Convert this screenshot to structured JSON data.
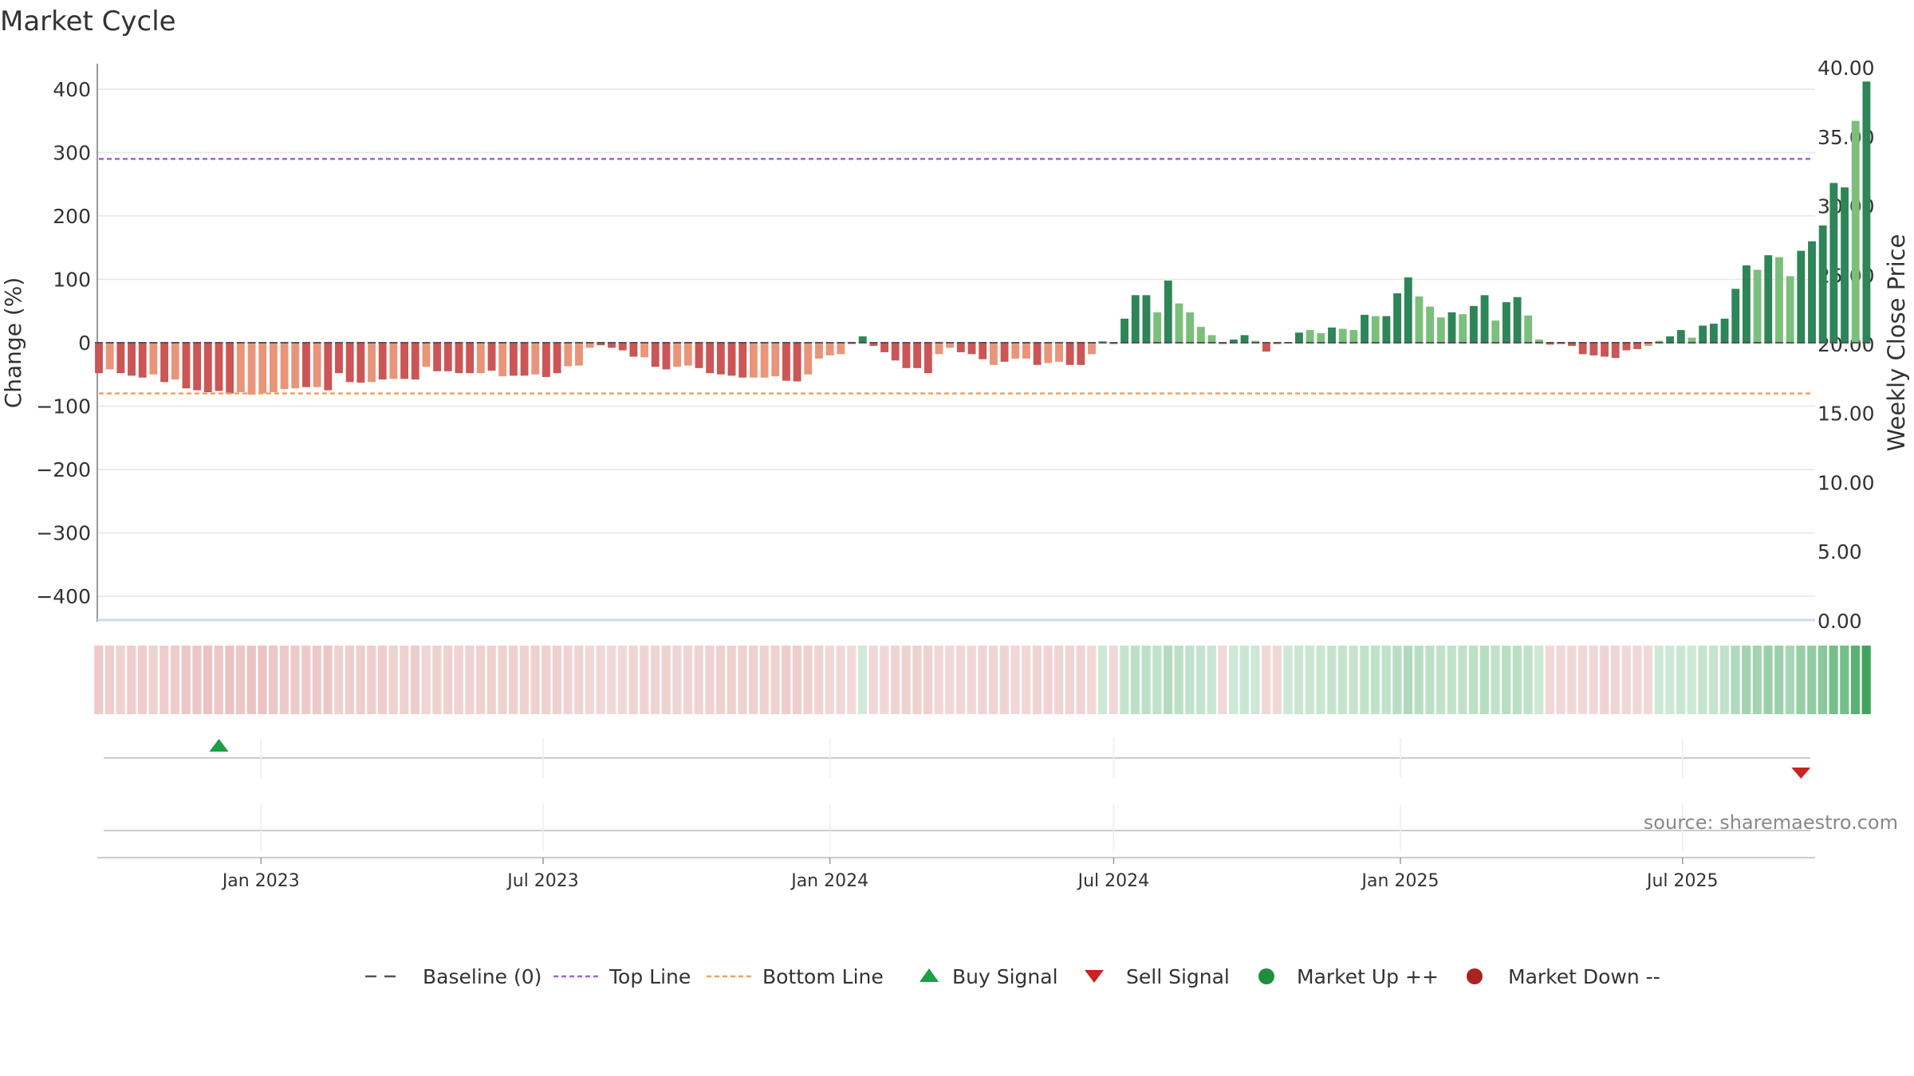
{
  "title": "Market Cycle",
  "source": "source: sharemaestro.com",
  "colors": {
    "bar_up_strong": "#2e8557",
    "bar_up_light": "#7cbf7c",
    "bar_down_strong": "#cc5555",
    "bar_down_light": "#e8957a",
    "top_line": "#9966cc",
    "bottom_line": "#f0a060",
    "price_line": "#c8dcf5",
    "buy": "#1e9e46",
    "sell": "#cc2222",
    "market_up": "#1e8e3e",
    "market_down": "#aa2222",
    "baseline": "#555555"
  },
  "legend": [
    {
      "label": "Baseline (0)",
      "icon": "baseline-dash-icon"
    },
    {
      "label": "Top Line",
      "icon": "top-line-icon"
    },
    {
      "label": "Bottom Line",
      "icon": "bottom-line-icon"
    },
    {
      "label": "Buy Signal",
      "icon": "buy-triangle-icon"
    },
    {
      "label": "Sell Signal",
      "icon": "sell-triangle-icon"
    },
    {
      "label": "Market Up ++",
      "icon": "market-up-dot-icon"
    },
    {
      "label": "Market Down --",
      "icon": "market-down-dot-icon"
    }
  ],
  "chart_data": {
    "type": "bar",
    "ylabel_left": "Change (%)",
    "ylabel_right": "Weekly Close Price",
    "ylim_left": [
      -440,
      440
    ],
    "yticks_left": [
      "400",
      "300",
      "200",
      "100",
      "0",
      "−100",
      "−200",
      "−300",
      "−400"
    ],
    "yticks_left_values": [
      400,
      300,
      200,
      100,
      0,
      -100,
      -200,
      -300,
      -400
    ],
    "ylim_right": [
      -0.07,
      40.3
    ],
    "yticks_right": [
      "40.00",
      "35.00",
      "30.00",
      "25.00",
      "20.00",
      "15.00",
      "10.00",
      "5.00",
      "0.00"
    ],
    "yticks_right_values": [
      40,
      35,
      30,
      25,
      20,
      15,
      10,
      5,
      0
    ],
    "top_line": 290,
    "bottom_line": -80,
    "price_near_zero": 0.05,
    "x_start": "2022-09-19",
    "x_end": "2025-09-22",
    "xticks": [
      {
        "label": "Jan 2023",
        "date": "2023-01-01"
      },
      {
        "label": "Jul 2023",
        "date": "2023-07-01"
      },
      {
        "label": "Jan 2024",
        "date": "2024-01-01"
      },
      {
        "label": "Jul 2024",
        "date": "2024-07-01"
      },
      {
        "label": "Jan 2025",
        "date": "2025-01-01"
      },
      {
        "label": "Jul 2025",
        "date": "2025-07-01"
      }
    ],
    "bar_start": "2022-09-19",
    "values": [
      -48,
      -42,
      -48,
      -52,
      -55,
      -50,
      -62,
      -58,
      -72,
      -75,
      -78,
      -76,
      -80,
      -78,
      -82,
      -80,
      -78,
      -73,
      -72,
      -70,
      -70,
      -75,
      -48,
      -62,
      -63,
      -62,
      -58,
      -57,
      -57,
      -58,
      -38,
      -45,
      -45,
      -48,
      -48,
      -48,
      -44,
      -53,
      -52,
      -52,
      -50,
      -54,
      -48,
      -37,
      -36,
      -8,
      -4,
      -8,
      -12,
      -22,
      -23,
      -38,
      -42,
      -38,
      -36,
      -40,
      -48,
      -50,
      -52,
      -55,
      -55,
      -55,
      -53,
      -60,
      -61,
      -50,
      -25,
      -20,
      -18,
      -2,
      10,
      -5,
      -15,
      -28,
      -40,
      -40,
      -48,
      -18,
      -8,
      -15,
      -18,
      -26,
      -35,
      -30,
      -25,
      -25,
      -35,
      -32,
      -30,
      -35,
      -35,
      -18,
      2,
      -2,
      38,
      75,
      75,
      48,
      98,
      62,
      48,
      25,
      12,
      -2,
      5,
      12,
      3,
      -14,
      -2,
      0,
      16,
      20,
      15,
      24,
      22,
      20,
      44,
      42,
      42,
      78,
      103,
      73,
      57,
      40,
      48,
      45,
      58,
      75,
      35,
      64,
      72,
      43,
      5,
      -3,
      -2,
      -5,
      -18,
      -20,
      -22,
      -24,
      -12,
      -10,
      -5,
      3,
      10,
      20,
      8,
      27,
      30,
      38,
      85,
      122,
      115,
      138,
      135,
      105,
      145,
      160,
      185,
      252,
      245,
      350,
      412
    ],
    "color_class": [
      "ds",
      "dl",
      "ds",
      "ds",
      "ds",
      "dl",
      "ds",
      "dl",
      "ds",
      "ds",
      "ds",
      "ds",
      "ds",
      "dl",
      "dl",
      "dl",
      "dl",
      "dl",
      "dl",
      "ds",
      "dl",
      "ds",
      "ds",
      "ds",
      "ds",
      "dl",
      "ds",
      "dl",
      "ds",
      "ds",
      "dl",
      "ds",
      "ds",
      "ds",
      "ds",
      "dl",
      "ds",
      "dl",
      "ds",
      "ds",
      "dl",
      "ds",
      "ds",
      "dl",
      "dl",
      "dl",
      "ds",
      "ds",
      "ds",
      "ds",
      "dl",
      "ds",
      "ds",
      "dl",
      "dl",
      "ds",
      "ds",
      "ds",
      "ds",
      "ds",
      "dl",
      "dl",
      "dl",
      "ds",
      "ds",
      "dl",
      "dl",
      "dl",
      "dl",
      "ds",
      "us",
      "ds",
      "ds",
      "ds",
      "ds",
      "ds",
      "ds",
      "dl",
      "dl",
      "ds",
      "ds",
      "ds",
      "dl",
      "ds",
      "dl",
      "dl",
      "ds",
      "dl",
      "dl",
      "ds",
      "ds",
      "dl",
      "us",
      "ds",
      "us",
      "us",
      "us",
      "ul",
      "us",
      "ul",
      "ul",
      "ul",
      "ul",
      "ds",
      "us",
      "us",
      "ul",
      "ds",
      "ds",
      "us",
      "us",
      "ul",
      "ul",
      "us",
      "ul",
      "ul",
      "us",
      "ul",
      "us",
      "us",
      "us",
      "ul",
      "ul",
      "ul",
      "us",
      "ul",
      "us",
      "us",
      "ul",
      "us",
      "us",
      "ul",
      "ul",
      "ds",
      "ds",
      "ds",
      "ds",
      "ds",
      "ds",
      "ds",
      "ds",
      "ds",
      "dl",
      "ul",
      "us",
      "us",
      "ul",
      "us",
      "us",
      "us",
      "us",
      "us",
      "ul",
      "us",
      "ul",
      "ul",
      "us",
      "us",
      "us",
      "us",
      "us",
      "ul",
      "us"
    ],
    "strip_shades": [
      0.32,
      0.3,
      0.28,
      0.3,
      0.3,
      0.28,
      0.3,
      0.3,
      0.34,
      0.34,
      0.36,
      0.34,
      0.36,
      0.34,
      0.36,
      0.36,
      0.34,
      0.32,
      0.32,
      0.32,
      0.32,
      0.34,
      0.28,
      0.3,
      0.3,
      0.3,
      0.3,
      0.28,
      0.28,
      0.3,
      0.26,
      0.28,
      0.28,
      0.28,
      0.28,
      0.28,
      0.28,
      0.28,
      0.28,
      0.28,
      0.28,
      0.28,
      0.28,
      0.26,
      0.26,
      0.24,
      0.24,
      0.24,
      0.24,
      0.26,
      0.26,
      0.26,
      0.28,
      0.26,
      0.26,
      0.26,
      0.28,
      0.28,
      0.28,
      0.28,
      0.28,
      0.28,
      0.28,
      0.3,
      0.3,
      0.28,
      0.26,
      0.24,
      0.24,
      0.22,
      0.22,
      0.24,
      0.24,
      0.26,
      0.28,
      0.28,
      0.28,
      0.24,
      0.24,
      0.24,
      0.24,
      0.26,
      0.26,
      0.26,
      0.24,
      0.24,
      0.26,
      0.26,
      0.26,
      0.26,
      0.26,
      0.24,
      0.24,
      0.24,
      0.28,
      0.32,
      0.32,
      0.3,
      0.36,
      0.32,
      0.3,
      0.28,
      0.26,
      0.24,
      0.24,
      0.26,
      0.24,
      0.24,
      0.24,
      0.24,
      0.26,
      0.26,
      0.26,
      0.28,
      0.28,
      0.28,
      0.3,
      0.3,
      0.3,
      0.34,
      0.38,
      0.34,
      0.32,
      0.3,
      0.3,
      0.3,
      0.32,
      0.34,
      0.3,
      0.34,
      0.34,
      0.3,
      0.24,
      0.24,
      0.24,
      0.24,
      0.24,
      0.24,
      0.26,
      0.26,
      0.24,
      0.24,
      0.24,
      0.24,
      0.24,
      0.26,
      0.24,
      0.28,
      0.28,
      0.3,
      0.38,
      0.44,
      0.44,
      0.48,
      0.48,
      0.42,
      0.5,
      0.52,
      0.56,
      0.66,
      0.66,
      0.8,
      0.92
    ],
    "buy_signals": [
      "2022-12-05"
    ],
    "sell_signals": [
      "2025-09-15"
    ]
  }
}
